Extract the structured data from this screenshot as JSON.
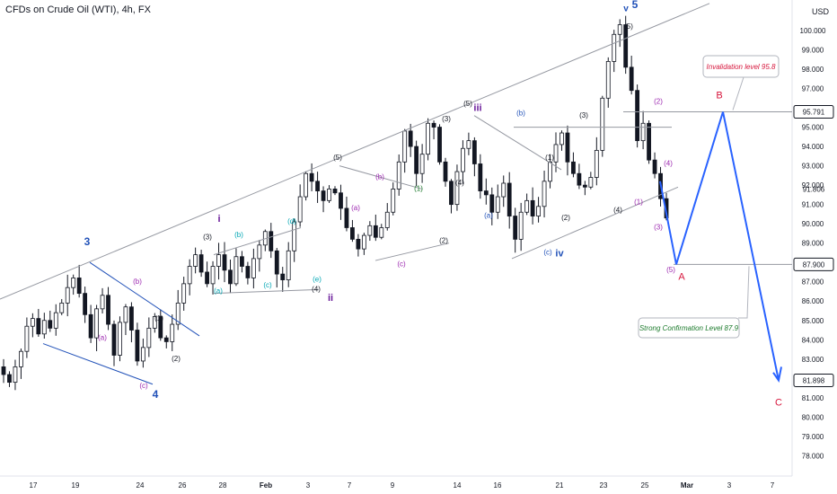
{
  "header": {
    "title": "CFDs on Crude Oil (WTI), 4h, FX",
    "currency": "USD"
  },
  "colors": {
    "up": "#ffffff",
    "down": "#131722",
    "wick": "#131722",
    "blue": "#2151b8",
    "purple": "#6a1b9a",
    "magenta": "#9c27b0",
    "teal": "#00a6b4",
    "green": "#1b7a2b",
    "black": "#131722",
    "red": "#d6163c",
    "projection": "#2962ff",
    "channel": "#9598a1"
  },
  "chart_data": {
    "type": "candlestick",
    "title": "CFDs on Crude Oil (WTI), 4h, FX",
    "xlabel": "",
    "ylabel": "",
    "ylim": [
      77.6,
      101.3
    ],
    "x_ticks": [
      "17",
      "19",
      "Feb",
      "24",
      "26",
      "28",
      "Feb",
      "3",
      "7",
      "9",
      "Mar",
      "14",
      "16",
      "21",
      "23",
      "25",
      "Mar",
      "3",
      "7"
    ],
    "x_ticks_real": [
      "17",
      "19",
      "24",
      "26",
      "28",
      "Feb",
      "3",
      "7",
      "9",
      "14",
      "16",
      "21",
      "23",
      "25",
      "Mar",
      "3",
      "7"
    ],
    "y_ticks": [
      "101.000",
      "100.000",
      "99.000",
      "98.000",
      "97.000",
      "96.000",
      "95.000",
      "94.000",
      "93.000",
      "92.000",
      "91.000",
      "90.000",
      "89.000",
      "88.000",
      "87.000",
      "86.000",
      "85.000",
      "84.000",
      "83.000",
      "82.000",
      "81.000",
      "80.000",
      "79.000",
      "78.000"
    ],
    "price_labels": [
      {
        "text": "95.791",
        "value": 95.791,
        "style": "outline"
      },
      {
        "text": "91.806",
        "value": 91.806,
        "style": "plain"
      },
      {
        "text": "87.900",
        "value": 87.9,
        "style": "outline"
      },
      {
        "text": "81.898",
        "value": 81.898,
        "style": "outline"
      }
    ],
    "candles_close_path": [
      82.2,
      81.8,
      82.6,
      83.4,
      84.7,
      85.1,
      84.3,
      85.0,
      84.6,
      85.4,
      85.9,
      86.7,
      87.2,
      86.4,
      85.3,
      84.1,
      85.6,
      86.3,
      84.8,
      83.2,
      84.9,
      85.7,
      84.5,
      82.9,
      83.6,
      84.6,
      85.2,
      84.1,
      83.9,
      84.8,
      85.9,
      86.9,
      87.8,
      88.4,
      87.5,
      86.9,
      87.8,
      88.4,
      87.6,
      86.9,
      88.3,
      87.8,
      87.2,
      88.2,
      88.9,
      89.6,
      88.6,
      87.4,
      87.1,
      88.6,
      90.1,
      91.4,
      92.6,
      92.2,
      91.7,
      91.2,
      91.8,
      91.6,
      90.8,
      89.8,
      89.2,
      88.7,
      89.4,
      89.9,
      89.3,
      89.8,
      90.6,
      91.8,
      93.2,
      94.8,
      94.0,
      92.6,
      93.6,
      95.2,
      95.0,
      93.2,
      92.2,
      91.0,
      92.7,
      93.9,
      94.3,
      93.1,
      91.7,
      91.5,
      90.6,
      91.4,
      92.1,
      90.4,
      89.2,
      90.6,
      91.2,
      90.4,
      90.9,
      92.2,
      93.2,
      94.1,
      94.7,
      93.2,
      92.6,
      92.0,
      91.9,
      92.4,
      93.8,
      96.5,
      98.4,
      99.8,
      100.3,
      98.1,
      96.9,
      94.3,
      95.2,
      93.3,
      92.6,
      91.3,
      90.3
    ],
    "channel_lines": [
      {
        "from": {
          "x_index": 0,
          "y": 86.1
        },
        "to": {
          "x_index": 135,
          "y": 103.0
        }
      },
      {
        "from": {
          "x_index": 0,
          "y": 87.3
        },
        "to": {
          "x_index": 135,
          "y": 87.3
        }
      }
    ],
    "projection": [
      {
        "label": "A",
        "value": 87.9
      },
      {
        "label": "B",
        "value": 95.791
      },
      {
        "label": "C",
        "value": 81.898
      }
    ],
    "annotations": [
      {
        "text": "Invalidation level 95.8",
        "value": 95.791,
        "color": "red"
      },
      {
        "text": "Strong Confirmation Level 87.9",
        "value": 87.9,
        "color": "green"
      }
    ],
    "wave_labels": [
      {
        "text": "3",
        "color": "blue"
      },
      {
        "text": "4",
        "color": "blue"
      },
      {
        "text": "5",
        "color": "blue"
      },
      {
        "text": "v",
        "color": "blue"
      },
      {
        "text": "i",
        "color": "purple"
      },
      {
        "text": "ii",
        "color": "purple"
      },
      {
        "text": "iii",
        "color": "purple"
      },
      {
        "text": "iv",
        "color": "blue"
      },
      {
        "text": "(a)",
        "color": "magenta"
      },
      {
        "text": "(b)",
        "color": "magenta"
      },
      {
        "text": "(c)",
        "color": "magenta"
      },
      {
        "text": "(1)",
        "color": "black"
      },
      {
        "text": "(2)",
        "color": "black"
      },
      {
        "text": "(3)",
        "color": "black"
      },
      {
        "text": "(4)",
        "color": "black"
      },
      {
        "text": "(5)",
        "color": "black"
      },
      {
        "text": "(a)",
        "color": "teal"
      },
      {
        "text": "(b)",
        "color": "teal"
      },
      {
        "text": "(c)",
        "color": "teal"
      },
      {
        "text": "(d)",
        "color": "teal"
      },
      {
        "text": "(e)",
        "color": "teal"
      },
      {
        "text": "(a)",
        "color": "magenta"
      },
      {
        "text": "(b)",
        "color": "magenta"
      },
      {
        "text": "(c)",
        "color": "magenta"
      },
      {
        "text": "(1)",
        "color": "green"
      },
      {
        "text": "(2)",
        "color": "black"
      },
      {
        "text": "(3)",
        "color": "black"
      },
      {
        "text": "(4)",
        "color": "black"
      },
      {
        "text": "(5)",
        "color": "black"
      },
      {
        "text": "(a)",
        "color": "blue"
      },
      {
        "text": "(b)",
        "color": "blue"
      },
      {
        "text": "(c)",
        "color": "blue"
      },
      {
        "text": "(1)",
        "color": "black"
      },
      {
        "text": "(2)",
        "color": "black"
      },
      {
        "text": "(3)",
        "color": "black"
      },
      {
        "text": "(4)",
        "color": "black"
      },
      {
        "text": "(5)",
        "color": "black"
      },
      {
        "text": "(1)",
        "color": "magenta"
      },
      {
        "text": "(2)",
        "color": "magenta"
      },
      {
        "text": "(3)",
        "color": "magenta"
      },
      {
        "text": "(4)",
        "color": "magenta"
      },
      {
        "text": "(5)",
        "color": "magenta"
      },
      {
        "text": "A",
        "color": "red"
      },
      {
        "text": "B",
        "color": "red"
      },
      {
        "text": "C",
        "color": "red"
      }
    ]
  }
}
